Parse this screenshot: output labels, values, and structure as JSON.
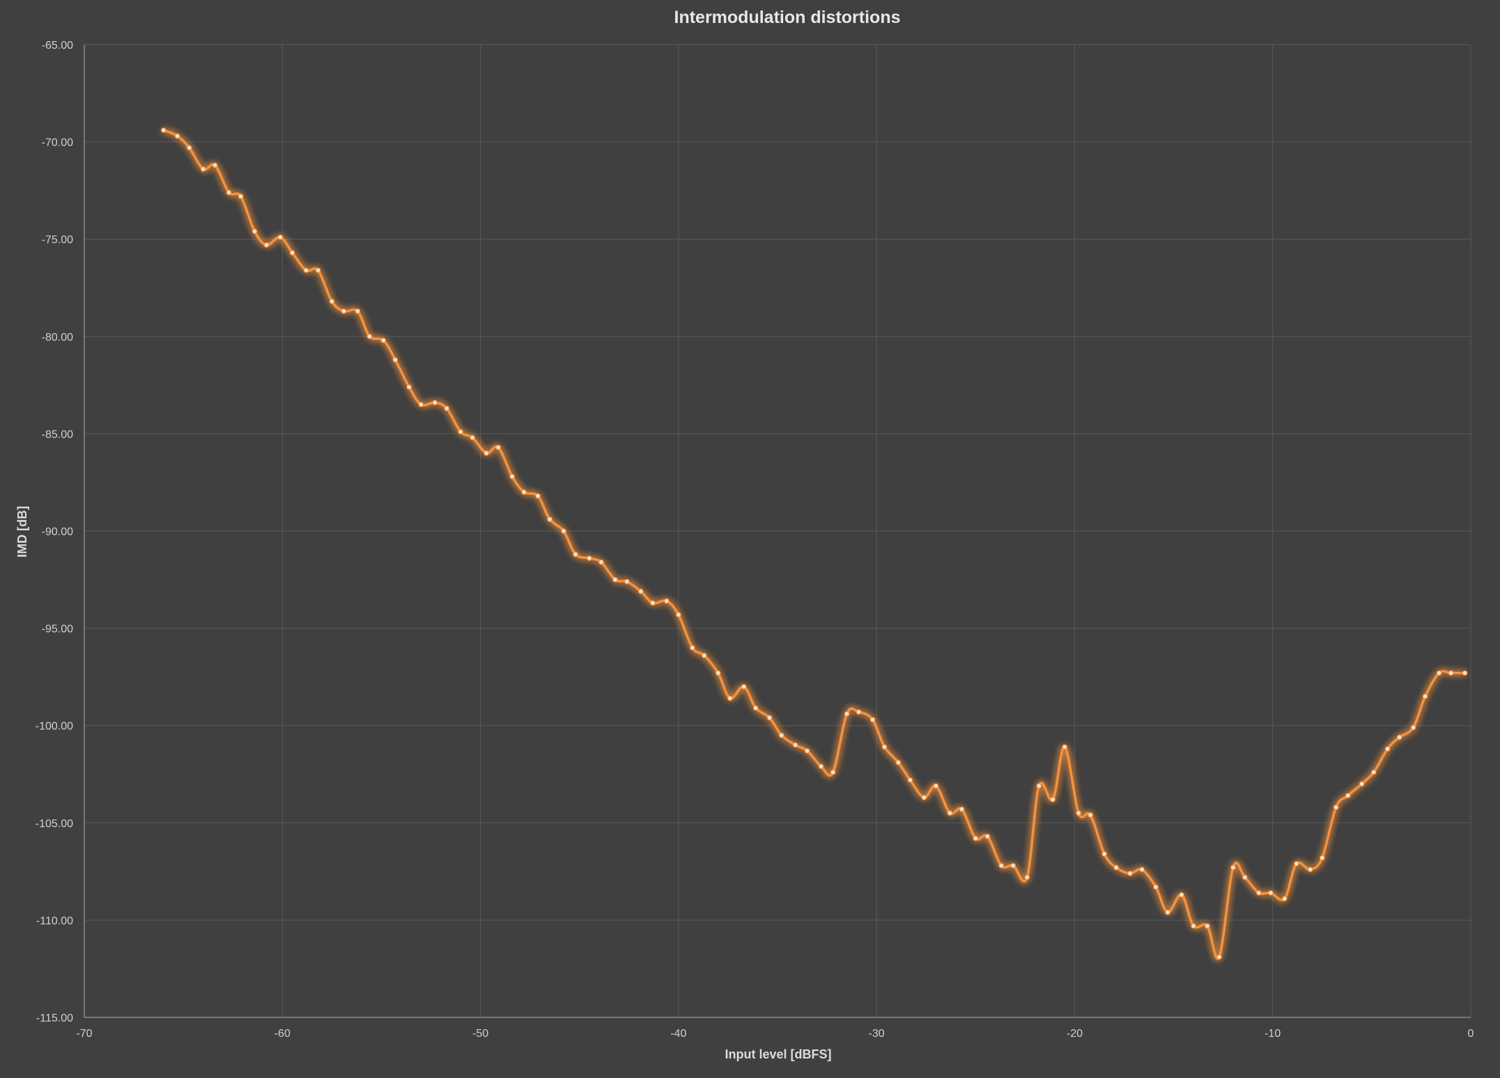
{
  "chart_data": {
    "type": "line",
    "title": "Intermodulation distortions",
    "xlabel": "Input level [dBFS]",
    "ylabel": "IMD [dB]",
    "xlim": [
      -70,
      0
    ],
    "ylim": [
      -115,
      -65
    ],
    "x_ticks": [
      -70,
      -60,
      -50,
      -40,
      -30,
      -20,
      -10,
      0
    ],
    "x_tick_labels": [
      "-70",
      "-60",
      "-50",
      "-40",
      "-30",
      "-20",
      "-10",
      "0"
    ],
    "y_ticks": [
      -65,
      -70,
      -75,
      -80,
      -85,
      -90,
      -95,
      -100,
      -105,
      -110,
      -115
    ],
    "y_tick_labels": [
      "-65.00",
      "-70.00",
      "-75.00",
      "-80.00",
      "-85.00",
      "-90.00",
      "-95.00",
      "-100.00",
      "-105.00",
      "-110.00",
      "-115.00"
    ],
    "grid": true,
    "legend": "none",
    "line_color": "#f5923e",
    "background_color": "#404040",
    "series": [
      {
        "x": [
          -66.0,
          -65.3,
          -64.7,
          -64.0,
          -63.4,
          -62.7,
          -62.1,
          -61.4,
          -60.8,
          -60.1,
          -59.5,
          -58.8,
          -58.2,
          -57.5,
          -56.9,
          -56.2,
          -55.6,
          -54.9,
          -54.3,
          -53.6,
          -53.0,
          -52.3,
          -51.7,
          -51.0,
          -50.4,
          -49.7,
          -49.1,
          -48.4,
          -47.8,
          -47.1,
          -46.5,
          -45.8,
          -45.2,
          -44.5,
          -43.9,
          -43.2,
          -42.6,
          -41.9,
          -41.3,
          -40.6,
          -40.0,
          -39.3,
          -38.7,
          -38.0,
          -37.4,
          -36.7,
          -36.1,
          -35.4,
          -34.8,
          -34.1,
          -33.5,
          -32.8,
          -32.2,
          -31.5,
          -30.9,
          -30.2,
          -29.6,
          -28.9,
          -28.3,
          -27.6,
          -27.0,
          -26.3,
          -25.7,
          -25.0,
          -24.4,
          -23.7,
          -23.1,
          -22.4,
          -21.8,
          -21.1,
          -20.5,
          -19.8,
          -19.2,
          -18.5,
          -17.9,
          -17.2,
          -16.6,
          -15.9,
          -15.3,
          -14.6,
          -14.0,
          -13.3,
          -12.7,
          -12.0,
          -11.4,
          -10.7,
          -10.1,
          -9.4,
          -8.8,
          -8.1,
          -7.5,
          -6.8,
          -6.2,
          -5.5,
          -4.9,
          -4.2,
          -3.6,
          -2.9,
          -2.3,
          -1.6,
          -1.0,
          -0.3
        ],
        "y": [
          -69.4,
          -69.7,
          -70.3,
          -71.4,
          -71.2,
          -72.6,
          -72.8,
          -74.6,
          -75.3,
          -74.9,
          -75.7,
          -76.6,
          -76.6,
          -78.2,
          -78.7,
          -78.7,
          -80.0,
          -80.2,
          -81.2,
          -82.6,
          -83.5,
          -83.4,
          -83.7,
          -84.9,
          -85.2,
          -86.0,
          -85.7,
          -87.2,
          -88.0,
          -88.2,
          -89.4,
          -90.0,
          -91.2,
          -91.4,
          -91.6,
          -92.5,
          -92.6,
          -93.1,
          -93.7,
          -93.6,
          -94.3,
          -96.0,
          -96.4,
          -97.3,
          -98.6,
          -98.0,
          -99.1,
          -99.6,
          -100.5,
          -101.0,
          -101.3,
          -102.1,
          -102.4,
          -99.4,
          -99.3,
          -99.7,
          -101.1,
          -101.9,
          -102.8,
          -103.7,
          -103.1,
          -104.5,
          -104.3,
          -105.8,
          -105.7,
          -107.2,
          -107.2,
          -107.8,
          -103.1,
          -103.8,
          -101.1,
          -104.5,
          -104.6,
          -106.6,
          -107.3,
          -107.6,
          -107.4,
          -108.3,
          -109.6,
          -108.7,
          -110.3,
          -110.3,
          -111.9,
          -107.3,
          -107.8,
          -108.6,
          -108.6,
          -108.9,
          -107.1,
          -107.4,
          -106.8,
          -104.2,
          -103.6,
          -103.0,
          -102.4,
          -101.2,
          -100.6,
          -100.1,
          -98.5,
          -97.3,
          -97.3,
          -97.3
        ]
      }
    ]
  }
}
